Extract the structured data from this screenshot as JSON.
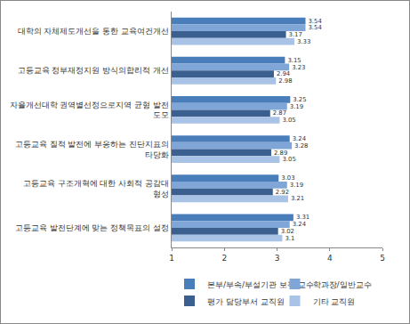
{
  "chart_data": {
    "type": "bar",
    "orientation": "horizontal",
    "categories": [
      "대학의 자체제도개선을 통한 교육여건개선",
      "고등교육 정부재정지원 방식의합리적 개선",
      "자율개선대학 권역별선정으로지역 균형 발전 도모",
      "고등교육 질적 발전에 부응하는 진단지표의 타당화",
      "고등교육 구조개혁에 대한 사회적 공감대 형성",
      "고등교육 발전단계에 맞는 정책목표의 설정"
    ],
    "series": [
      {
        "name": "본부/부속/부설기관 보직 교수",
        "color": "#4a7ebb",
        "values": [
          3.54,
          3.15,
          3.25,
          3.24,
          3.03,
          3.31
        ]
      },
      {
        "name": "학과장/일반교수",
        "color": "#7fa6d6",
        "values": [
          3.54,
          3.23,
          3.19,
          3.28,
          3.19,
          3.24
        ]
      },
      {
        "name": "평가 담당부서 교직원",
        "color": "#3b5f8f",
        "values": [
          3.17,
          2.94,
          2.87,
          2.89,
          2.92,
          3.02
        ]
      },
      {
        "name": "기타 교직원",
        "color": "#a9c3e6",
        "values": [
          3.33,
          2.98,
          3.05,
          3.05,
          3.21,
          3.1
        ]
      }
    ],
    "xlim": [
      1,
      5
    ],
    "xticks": [
      1,
      2,
      3,
      4,
      5
    ],
    "grid": false,
    "data_labels": true,
    "legend": "bottom"
  }
}
